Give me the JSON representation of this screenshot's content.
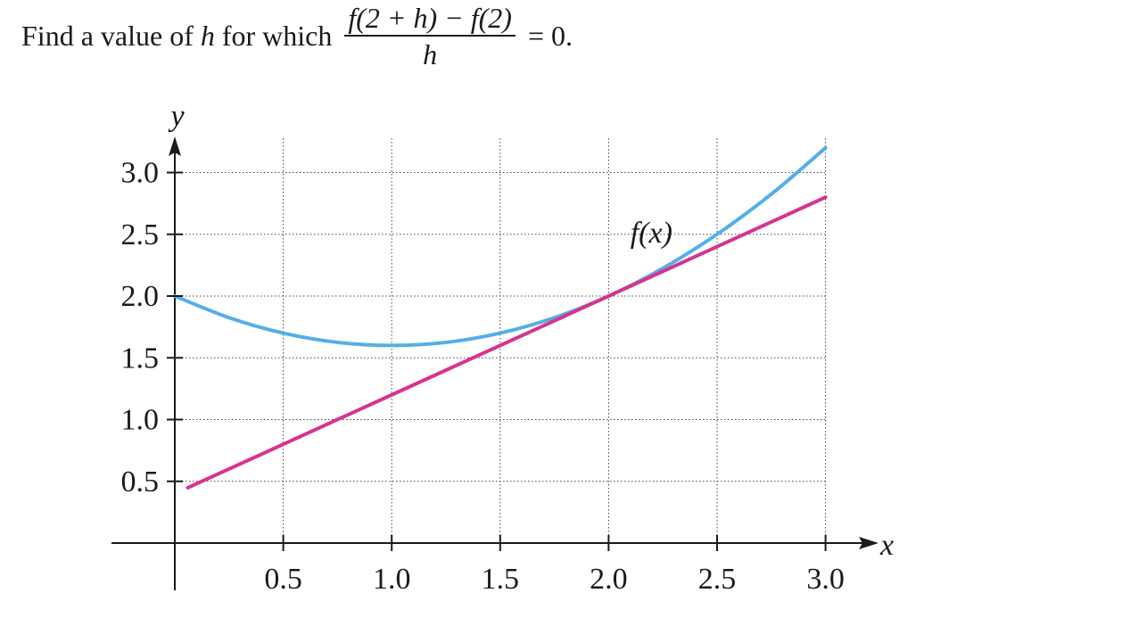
{
  "question": {
    "prefix": "Find a value of ",
    "var": "h",
    "mid": " for which",
    "numerator": "f(2 + h) − f(2)",
    "denominator": "h",
    "suffix": "= 0."
  },
  "chart_data": {
    "type": "line",
    "title": "",
    "xlabel": "x",
    "ylabel": "y",
    "xlim": [
      0,
      3.1
    ],
    "ylim": [
      -0.3,
      3.2
    ],
    "xticks": [
      0.5,
      1.0,
      1.5,
      2.0,
      2.5,
      3.0
    ],
    "xtick_labels": [
      "0.5",
      "1.0",
      "1.5",
      "2.0",
      "2.5",
      "3.0"
    ],
    "yticks": [
      0.5,
      1.0,
      1.5,
      2.0,
      2.5,
      3.0
    ],
    "ytick_labels": [
      "0.5",
      "1.0",
      "1.5",
      "2.0",
      "2.5",
      "3.0"
    ],
    "grid": true,
    "grid_style": "dotted",
    "series": [
      {
        "name": "f(x)",
        "color": "#55aee6",
        "x": [
          0,
          0.25,
          0.5,
          0.75,
          1.0,
          1.25,
          1.5,
          1.75,
          2.0,
          2.25,
          2.5,
          2.75,
          3.0
        ],
        "y": [
          2.0,
          1.825,
          1.7,
          1.625,
          1.6,
          1.625,
          1.7,
          1.825,
          2.0,
          2.225,
          2.5,
          2.825,
          3.2
        ]
      },
      {
        "name": "",
        "color": "#d6348e",
        "x": [
          0.06,
          3.0
        ],
        "y": [
          0.448,
          2.8
        ]
      }
    ],
    "annotations": [
      {
        "text": "f(x)",
        "x": 2.1,
        "y": 2.52
      }
    ]
  }
}
